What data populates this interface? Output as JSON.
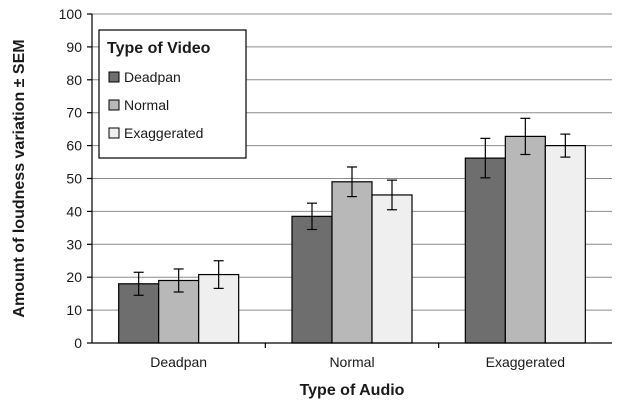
{
  "chart_data": {
    "type": "bar",
    "title": "",
    "xlabel": "Type of Audio",
    "ylabel": "Amount of loudness variation ± SEM",
    "ylim": [
      0,
      100
    ],
    "yticks": [
      0,
      10,
      20,
      30,
      40,
      50,
      60,
      70,
      80,
      90,
      100
    ],
    "grid": "horizontal",
    "legend": {
      "title": "Type of Video",
      "placement": "top-left"
    },
    "categories": [
      "Deadpan",
      "Normal",
      "Exaggerated"
    ],
    "series": [
      {
        "name": "Deadpan",
        "color": "#6e6e6e",
        "values": [
          18,
          38.5,
          56.2
        ],
        "errors": [
          3.5,
          4,
          6
        ]
      },
      {
        "name": "Normal",
        "color": "#b8b8b8",
        "values": [
          19,
          49,
          62.8
        ],
        "errors": [
          3.5,
          4.5,
          5.5
        ]
      },
      {
        "name": "Exaggerated",
        "color": "#efefef",
        "values": [
          20.8,
          45,
          60
        ],
        "errors": [
          4.2,
          4.5,
          3.5
        ]
      }
    ]
  }
}
